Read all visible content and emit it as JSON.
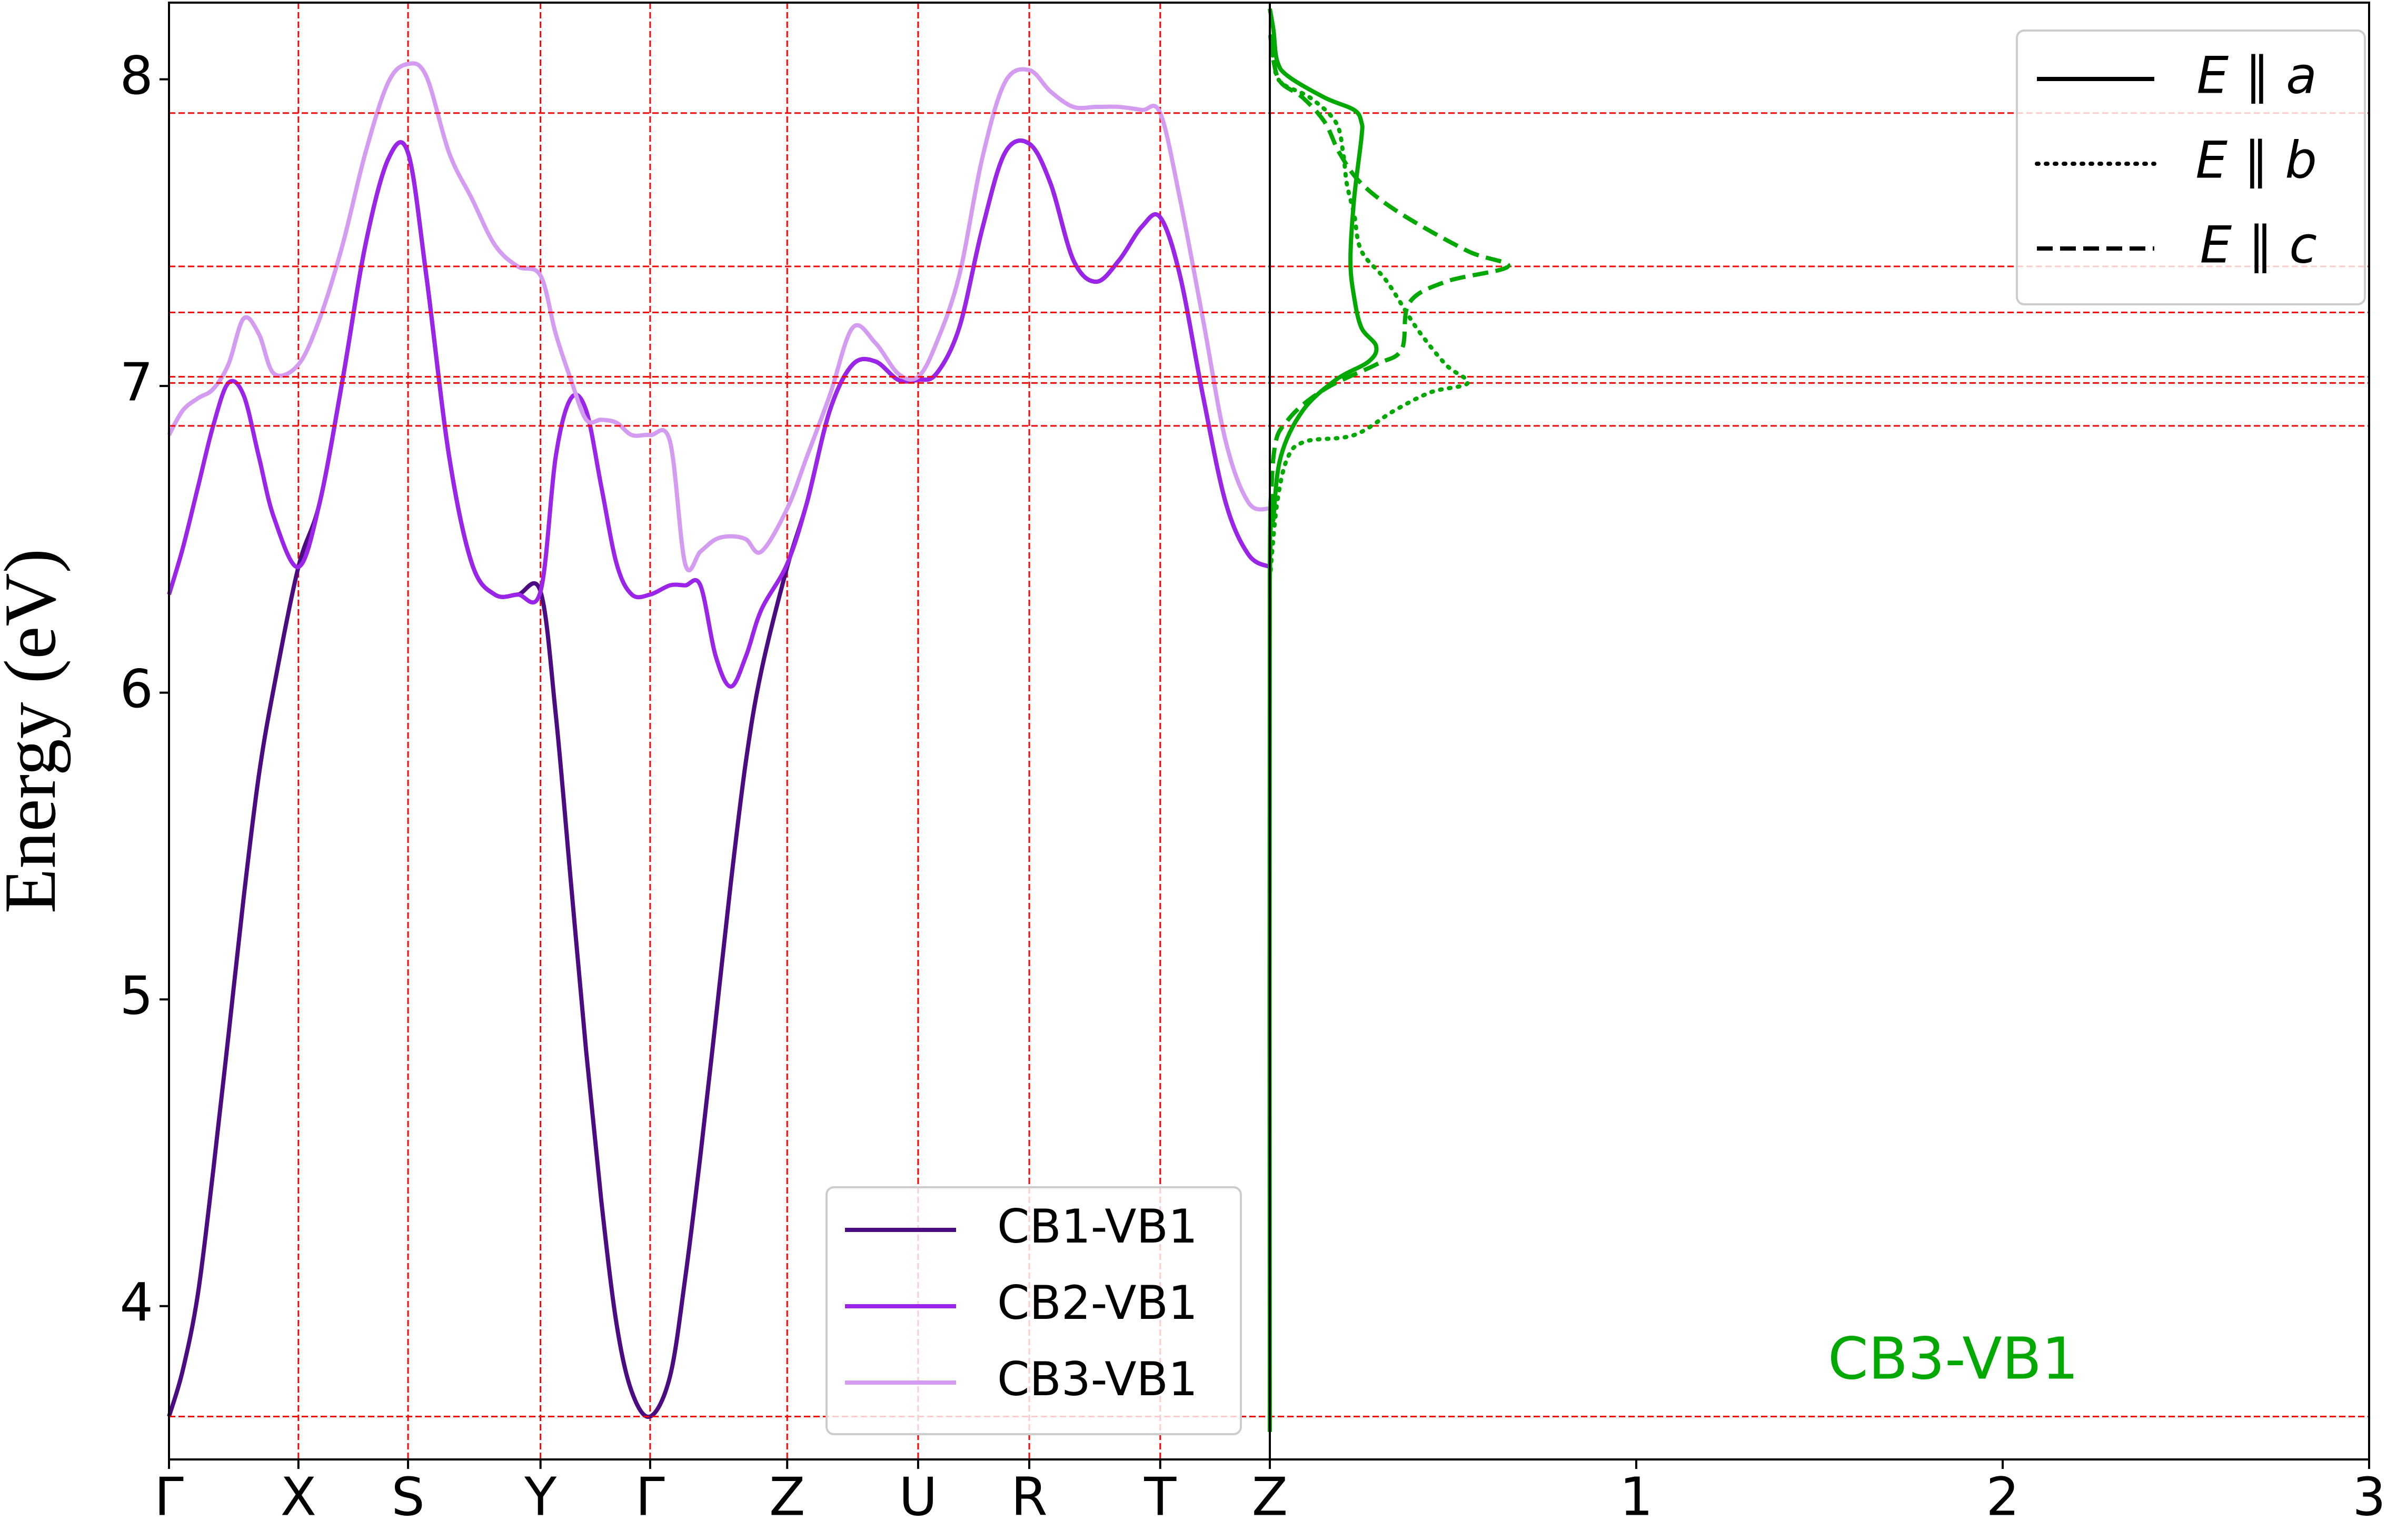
{
  "chart_data": [
    {
      "type": "line",
      "y_label": "Energy (eV)",
      "xlim": [
        0,
        7.23
      ],
      "xticks": [
        {
          "value": 0,
          "label": "Γ"
        },
        {
          "value": 0.85,
          "label": "X"
        },
        {
          "value": 1.57,
          "label": "S"
        },
        {
          "value": 2.44,
          "label": "Y"
        },
        {
          "value": 3.16,
          "label": "Γ"
        },
        {
          "value": 4.06,
          "label": "Z"
        },
        {
          "value": 4.92,
          "label": "U"
        },
        {
          "value": 5.65,
          "label": "R"
        },
        {
          "value": 6.51,
          "label": "T"
        },
        {
          "value": 7.23,
          "label": "Z"
        }
      ],
      "ylim": [
        3.5,
        8.25
      ],
      "yticks": [
        4,
        5,
        6,
        7,
        8
      ],
      "hlines": [
        7.89,
        7.39,
        7.24,
        7.03,
        7.01,
        6.87,
        3.64
      ],
      "grid_color": "#ff0000",
      "legend": "lower center",
      "x": [
        0,
        0.09,
        0.19,
        0.29,
        0.39,
        0.49,
        0.59,
        0.69,
        0.85,
        0.99,
        1.14,
        1.29,
        1.44,
        1.57,
        1.69,
        1.84,
        1.99,
        2.14,
        2.29,
        2.44,
        2.54,
        2.64,
        2.74,
        2.84,
        2.94,
        3.04,
        3.16,
        3.29,
        3.39,
        3.49,
        3.59,
        3.69,
        3.79,
        3.89,
        4.06,
        4.19,
        4.34,
        4.49,
        4.64,
        4.79,
        4.92,
        5.04,
        5.19,
        5.34,
        5.49,
        5.65,
        5.79,
        5.94,
        6.09,
        6.24,
        6.39,
        6.51,
        6.64,
        6.79,
        6.94,
        7.09,
        7.23
      ],
      "series": [
        {
          "name": "CB1-VB1",
          "color": "#4b0c82",
          "values": [
            3.64,
            3.79,
            4.04,
            4.44,
            4.88,
            5.33,
            5.73,
            6.02,
            6.41,
            6.62,
            7.02,
            7.46,
            7.74,
            7.76,
            7.36,
            6.77,
            6.42,
            6.32,
            6.32,
            6.33,
            5.93,
            5.38,
            4.83,
            4.34,
            3.94,
            3.72,
            3.64,
            3.77,
            4.09,
            4.49,
            4.93,
            5.38,
            5.78,
            6.07,
            6.41,
            6.62,
            6.92,
            7.07,
            7.08,
            7.02,
            7.02,
            7.04,
            7.19,
            7.51,
            7.76,
            7.79,
            7.66,
            7.41,
            7.34,
            7.41,
            7.52,
            7.55,
            7.36,
            6.97,
            6.62,
            6.45,
            6.41
          ]
        },
        {
          "name": "CB2-VB1",
          "color": "#9a25e8",
          "values": [
            6.32,
            6.47,
            6.67,
            6.87,
            7.01,
            6.97,
            6.77,
            6.57,
            6.41,
            6.62,
            7.02,
            7.46,
            7.74,
            7.76,
            7.36,
            6.77,
            6.42,
            6.32,
            6.32,
            6.33,
            6.77,
            6.96,
            6.92,
            6.67,
            6.42,
            6.32,
            6.32,
            6.35,
            6.35,
            6.35,
            6.12,
            6.02,
            6.12,
            6.27,
            6.42,
            6.62,
            6.92,
            7.07,
            7.08,
            7.02,
            7.02,
            7.04,
            7.19,
            7.51,
            7.76,
            7.79,
            7.66,
            7.41,
            7.34,
            7.41,
            7.52,
            7.55,
            7.36,
            6.97,
            6.62,
            6.45,
            6.41
          ]
        },
        {
          "name": "CB3-VB1",
          "color": "#d49cf0",
          "values": [
            6.84,
            6.92,
            6.96,
            6.99,
            7.07,
            7.22,
            7.17,
            7.04,
            7.07,
            7.22,
            7.46,
            7.76,
            7.99,
            8.05,
            8.01,
            7.76,
            7.61,
            7.46,
            7.39,
            7.36,
            7.17,
            7.02,
            6.89,
            6.89,
            6.88,
            6.84,
            6.84,
            6.82,
            6.42,
            6.46,
            6.5,
            6.51,
            6.5,
            6.46,
            6.6,
            6.77,
            6.97,
            7.19,
            7.14,
            7.04,
            7.03,
            7.14,
            7.36,
            7.74,
            7.99,
            8.03,
            7.96,
            7.91,
            7.91,
            7.91,
            7.9,
            7.89,
            7.61,
            7.22,
            6.82,
            6.62,
            6.6
          ]
        }
      ]
    },
    {
      "type": "spectrum",
      "annotation": "CB3-VB1",
      "annotation_color": "#00a800",
      "xlim": [
        0,
        3
      ],
      "xticks": [
        1,
        2,
        3
      ],
      "ylim": [
        3.5,
        8.25
      ],
      "legend": "upper right",
      "legend_color": "#000000",
      "series": [
        {
          "name": "E ∥ a",
          "color": "#00a800",
          "linestyle": "solid",
          "x": [
            0,
            0,
            0.01,
            0.03,
            0.09,
            0.18,
            0.27,
            0.29,
            0.25,
            0.23,
            0.22,
            0.23,
            0.25,
            0.25,
            0.23,
            0.15,
            0.05,
            0.02,
            0.01,
            0
          ],
          "y": [
            3.59,
            6.37,
            6.57,
            6.77,
            6.92,
            7.02,
            7.08,
            7.13,
            7.19,
            7.29,
            7.41,
            7.61,
            7.81,
            7.86,
            7.9,
            7.94,
            8.01,
            8.06,
            8.16,
            8.23
          ]
        },
        {
          "name": "E ∥ b",
          "color": "#00a800",
          "linestyle": "dotted",
          "x": [
            0,
            0.02,
            0.05,
            0.1,
            0.23,
            0.34,
            0.44,
            0.54,
            0.48,
            0.4,
            0.32,
            0.25,
            0.23,
            0.21,
            0.2,
            0.18,
            0.11,
            0.03,
            0.01,
            0
          ],
          "y": [
            6.37,
            6.62,
            6.77,
            6.82,
            6.84,
            6.92,
            6.98,
            7.01,
            7.07,
            7.19,
            7.34,
            7.44,
            7.56,
            7.66,
            7.76,
            7.86,
            7.94,
            7.99,
            8.06,
            8.16
          ]
        },
        {
          "name": "E ∥ c",
          "color": "#00a800",
          "linestyle": "dashed",
          "x": [
            0,
            0.01,
            0.05,
            0.15,
            0.29,
            0.36,
            0.38,
            0.48,
            0.65,
            0.54,
            0.36,
            0.25,
            0.19,
            0.15,
            0.09,
            0.03,
            0.01,
            0
          ],
          "y": [
            6.37,
            6.77,
            6.89,
            6.99,
            7.07,
            7.12,
            7.27,
            7.34,
            7.39,
            7.44,
            7.56,
            7.66,
            7.76,
            7.86,
            7.94,
            7.99,
            8.06,
            8.16
          ]
        }
      ]
    }
  ]
}
